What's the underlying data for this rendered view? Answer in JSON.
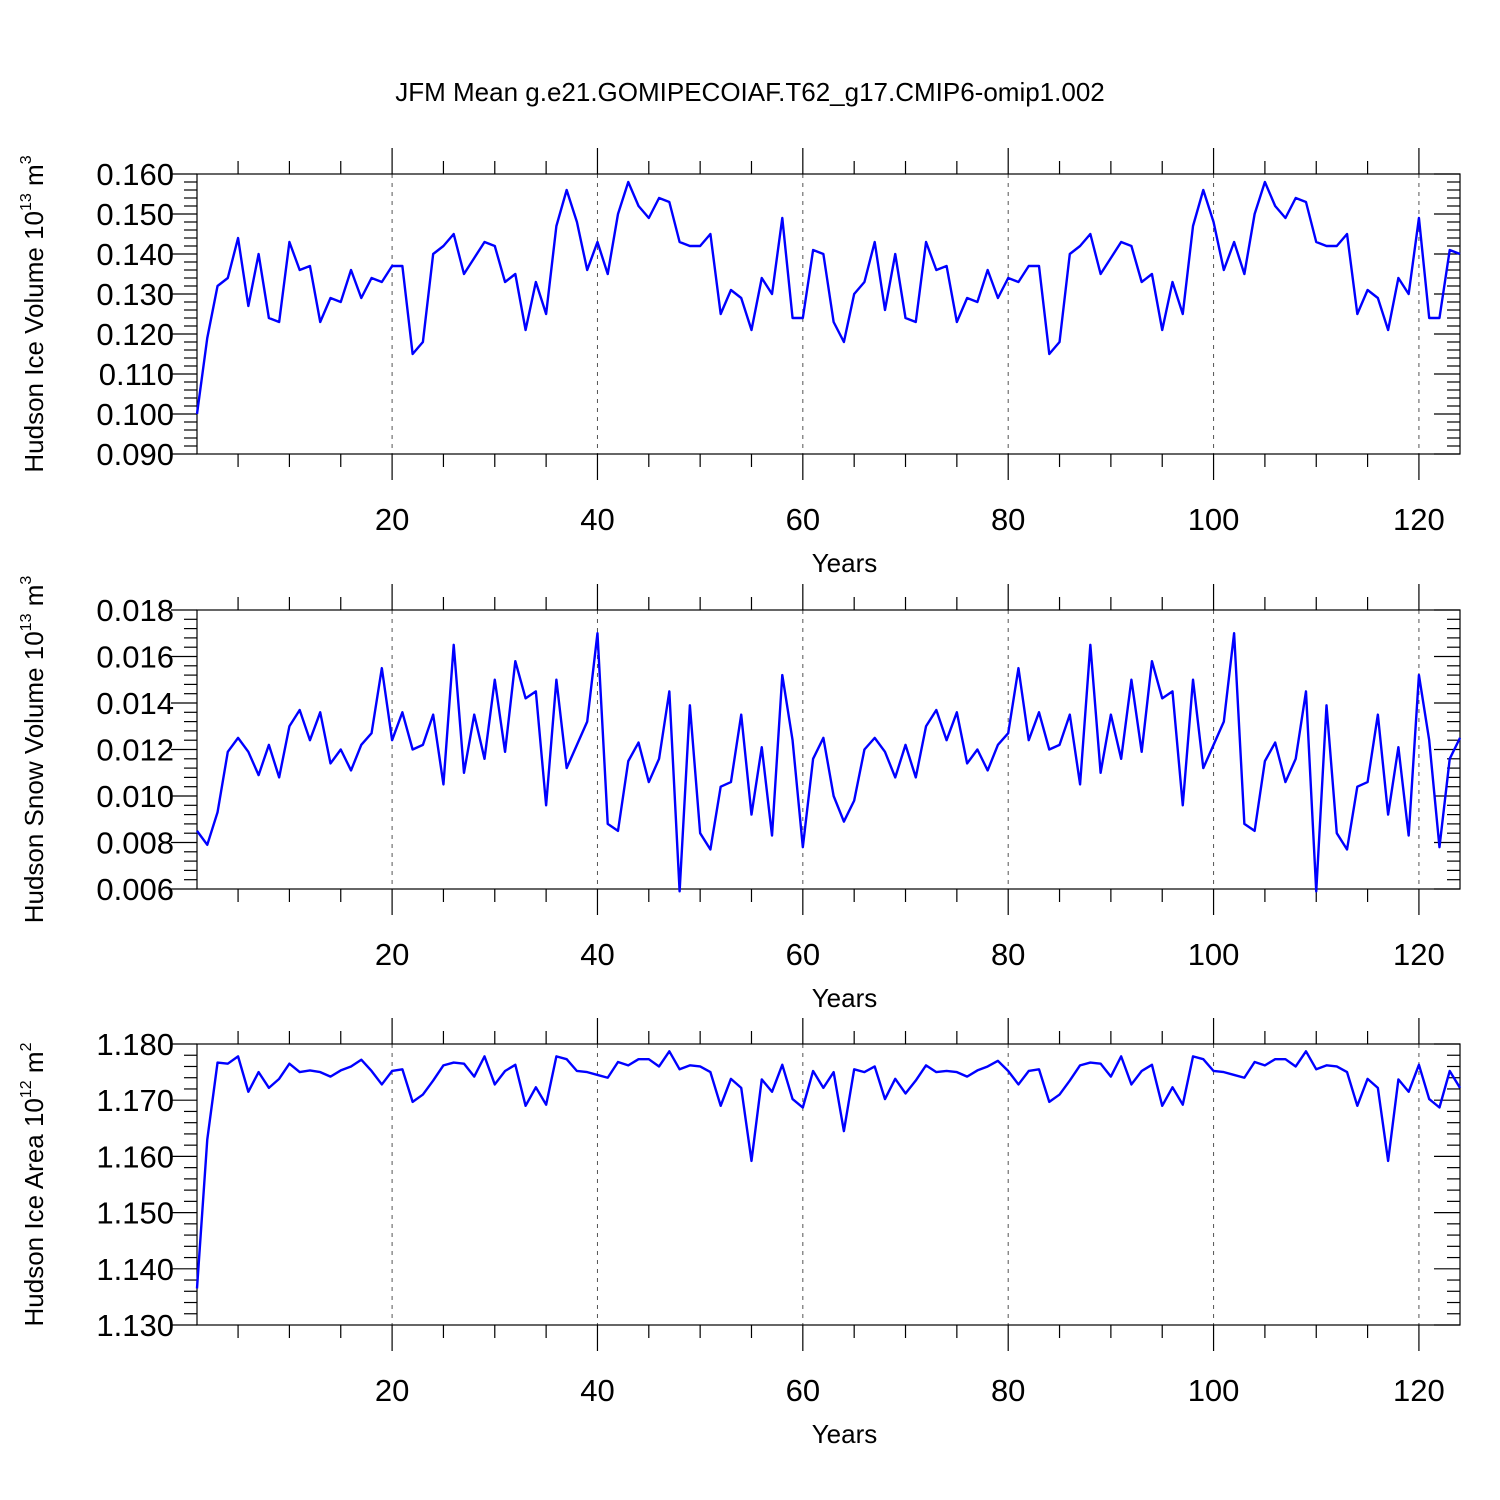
{
  "figure": {
    "title": "JFM Mean g.e21.GOMIPECOIAF.T62_g17.CMIP6-omip1.002",
    "line_color": "#0000ff",
    "grid_color": "#555555"
  },
  "chart_data": [
    {
      "type": "line",
      "ylabel": "Hudson Ice Volume 10",
      "ylabel_exponent": "13",
      "ylabel_unit": " m",
      "ylabel_unit_exponent": "3",
      "xlabel": "Years",
      "xlim": [
        1,
        124
      ],
      "ylim": [
        0.09,
        0.16
      ],
      "xticks": [
        20,
        40,
        60,
        80,
        100,
        120
      ],
      "xtick_labels": [
        "20",
        "40",
        "60",
        "80",
        "100",
        "120"
      ],
      "yticks": [
        0.09,
        0.1,
        0.11,
        0.12,
        0.13,
        0.14,
        0.15,
        0.16
      ],
      "ytick_labels": [
        "0.090",
        "0.100",
        "0.110",
        "0.120",
        "0.130",
        "0.140",
        "0.150",
        "0.160"
      ],
      "grid": "dashed vertical at major x ticks",
      "series": [
        {
          "name": "Hudson Ice Volume",
          "x_start": 1,
          "values": [
            0.1,
            0.119,
            0.132,
            0.134,
            0.144,
            0.127,
            0.14,
            0.124,
            0.123,
            0.143,
            0.136,
            0.137,
            0.123,
            0.129,
            0.128,
            0.136,
            0.129,
            0.134,
            0.133,
            0.137,
            0.137,
            0.115,
            0.118,
            0.14,
            0.142,
            0.145,
            0.135,
            0.139,
            0.143,
            0.142,
            0.133,
            0.135,
            0.121,
            0.133,
            0.125,
            0.147,
            0.156,
            0.148,
            0.136,
            0.143,
            0.135,
            0.15,
            0.158,
            0.152,
            0.149,
            0.154,
            0.153,
            0.143,
            0.142,
            0.142,
            0.145,
            0.125,
            0.131,
            0.129,
            0.121,
            0.134,
            0.13,
            0.149,
            0.124,
            0.124,
            0.141,
            0.14,
            0.123,
            0.118,
            0.13,
            0.133,
            0.143,
            0.126,
            0.14,
            0.124,
            0.123,
            0.143,
            0.136,
            0.137,
            0.123,
            0.129,
            0.128,
            0.136,
            0.129,
            0.134,
            0.133,
            0.137,
            0.137,
            0.115,
            0.118,
            0.14,
            0.142,
            0.145,
            0.135,
            0.139,
            0.143,
            0.142,
            0.133,
            0.135,
            0.121,
            0.133,
            0.125,
            0.147,
            0.156,
            0.148,
            0.136,
            0.143,
            0.135,
            0.15,
            0.158,
            0.152,
            0.149,
            0.154,
            0.153,
            0.143,
            0.142,
            0.142,
            0.145,
            0.125,
            0.131,
            0.129,
            0.121,
            0.134,
            0.13,
            0.149,
            0.124,
            0.124,
            0.141,
            0.14
          ]
        }
      ]
    },
    {
      "type": "line",
      "ylabel": "Hudson Snow Volume 10",
      "ylabel_exponent": "13",
      "ylabel_unit": " m",
      "ylabel_unit_exponent": "3",
      "xlabel": "Years",
      "xlim": [
        1,
        124
      ],
      "ylim": [
        0.006,
        0.018
      ],
      "xticks": [
        20,
        40,
        60,
        80,
        100,
        120
      ],
      "xtick_labels": [
        "20",
        "40",
        "60",
        "80",
        "100",
        "120"
      ],
      "yticks": [
        0.006,
        0.008,
        0.01,
        0.012,
        0.014,
        0.016,
        0.018
      ],
      "ytick_labels": [
        "0.006",
        "0.008",
        "0.010",
        "0.012",
        "0.014",
        "0.016",
        "0.018"
      ],
      "grid": "dashed vertical at major x ticks",
      "series": [
        {
          "name": "Hudson Snow Volume",
          "x_start": 1,
          "values": [
            0.0085,
            0.0079,
            0.0093,
            0.0119,
            0.0125,
            0.0119,
            0.0109,
            0.0122,
            0.0108,
            0.013,
            0.0137,
            0.0124,
            0.0136,
            0.0114,
            0.012,
            0.0111,
            0.0122,
            0.0127,
            0.0155,
            0.0124,
            0.0136,
            0.012,
            0.0122,
            0.0135,
            0.0105,
            0.0165,
            0.011,
            0.0135,
            0.0116,
            0.015,
            0.0119,
            0.0158,
            0.0142,
            0.0145,
            0.0096,
            0.015,
            0.0112,
            0.0122,
            0.0132,
            0.017,
            0.0088,
            0.0085,
            0.0115,
            0.0123,
            0.0106,
            0.0116,
            0.0145,
            0.0059,
            0.0139,
            0.0084,
            0.0077,
            0.0104,
            0.0106,
            0.0135,
            0.0092,
            0.0121,
            0.0083,
            0.0152,
            0.0124,
            0.0078,
            0.0116,
            0.0125,
            0.01,
            0.0089,
            0.0098,
            0.012,
            0.0125,
            0.0119,
            0.0108,
            0.0122,
            0.0108,
            0.013,
            0.0137,
            0.0124,
            0.0136,
            0.0114,
            0.012,
            0.0111,
            0.0122,
            0.0127,
            0.0155,
            0.0124,
            0.0136,
            0.012,
            0.0122,
            0.0135,
            0.0105,
            0.0165,
            0.011,
            0.0135,
            0.0116,
            0.015,
            0.0119,
            0.0158,
            0.0142,
            0.0145,
            0.0096,
            0.015,
            0.0112,
            0.0122,
            0.0132,
            0.017,
            0.0088,
            0.0085,
            0.0115,
            0.0123,
            0.0106,
            0.0116,
            0.0145,
            0.0059,
            0.0139,
            0.0084,
            0.0077,
            0.0104,
            0.0106,
            0.0135,
            0.0092,
            0.0121,
            0.0083,
            0.0152,
            0.0124,
            0.0078,
            0.0116,
            0.0125
          ]
        }
      ]
    },
    {
      "type": "line",
      "ylabel": "Hudson Ice Area 10",
      "ylabel_exponent": "12",
      "ylabel_unit": " m",
      "ylabel_unit_exponent": "2",
      "xlabel": "Years",
      "xlim": [
        1,
        124
      ],
      "ylim": [
        1.13,
        1.18
      ],
      "xticks": [
        20,
        40,
        60,
        80,
        100,
        120
      ],
      "xtick_labels": [
        "20",
        "40",
        "60",
        "80",
        "100",
        "120"
      ],
      "yticks": [
        1.13,
        1.14,
        1.15,
        1.16,
        1.17,
        1.18
      ],
      "ytick_labels": [
        "1.130",
        "1.140",
        "1.150",
        "1.160",
        "1.170",
        "1.180"
      ],
      "grid": "dashed vertical at major x ticks",
      "series": [
        {
          "name": "Hudson Ice Area",
          "x_start": 1,
          "values": [
            1.1365,
            1.163,
            1.1767,
            1.1765,
            1.1778,
            1.1715,
            1.175,
            1.1722,
            1.1738,
            1.1765,
            1.175,
            1.1753,
            1.175,
            1.1742,
            1.1753,
            1.176,
            1.1772,
            1.1752,
            1.1728,
            1.1752,
            1.1755,
            1.1697,
            1.171,
            1.1735,
            1.1762,
            1.1767,
            1.1765,
            1.1742,
            1.1778,
            1.1728,
            1.1752,
            1.1763,
            1.169,
            1.1723,
            1.1692,
            1.1778,
            1.1773,
            1.1752,
            1.175,
            1.1745,
            1.174,
            1.1768,
            1.1762,
            1.1773,
            1.1773,
            1.176,
            1.1787,
            1.1755,
            1.1762,
            1.176,
            1.175,
            1.169,
            1.1738,
            1.1722,
            1.1592,
            1.1737,
            1.1715,
            1.1763,
            1.1702,
            1.1687,
            1.1752,
            1.1722,
            1.175,
            1.1645,
            1.1755,
            1.175,
            1.176,
            1.1702,
            1.1738,
            1.1712,
            1.1735,
            1.1762,
            1.175,
            1.1752,
            1.175,
            1.1742,
            1.1753,
            1.176,
            1.177,
            1.1752,
            1.1728,
            1.1752,
            1.1755,
            1.1697,
            1.171,
            1.1735,
            1.1762,
            1.1767,
            1.1765,
            1.1742,
            1.1778,
            1.1728,
            1.1752,
            1.1763,
            1.169,
            1.1723,
            1.1692,
            1.1778,
            1.1773,
            1.1752,
            1.175,
            1.1745,
            1.174,
            1.1768,
            1.1762,
            1.1773,
            1.1773,
            1.176,
            1.1787,
            1.1755,
            1.1762,
            1.176,
            1.175,
            1.169,
            1.1738,
            1.1722,
            1.1592,
            1.1737,
            1.1715,
            1.1763,
            1.1702,
            1.1687,
            1.1752,
            1.1722
          ]
        }
      ]
    }
  ]
}
